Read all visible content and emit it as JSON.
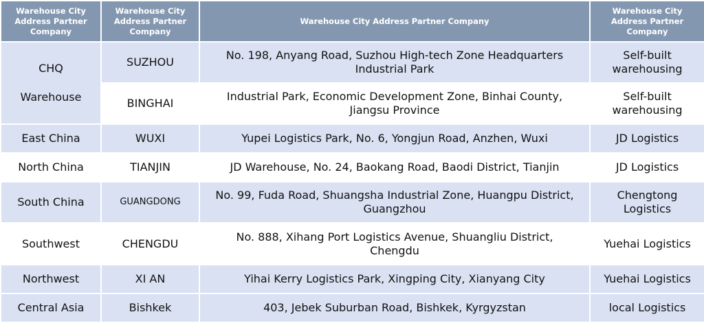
{
  "headers": [
    "Warehouse City Address Partner Company",
    "Warehouse City Address Partner Company",
    "Warehouse City Address Partner Company",
    "Warehouse City Address Partner Company"
  ],
  "merged_region": {
    "line1": "CHQ",
    "line2": "Warehouse"
  },
  "rows": [
    {
      "region": "",
      "city": "SUZHOU",
      "address": "No. 198, Anyang Road, Suzhou High-tech Zone Headquarters Industrial Park",
      "partner": "Self-built warehousing"
    },
    {
      "region": "",
      "city": "BINGHAI",
      "address": "Industrial Park, Economic Development Zone, Binhai County, Jiangsu Province",
      "partner": "Self-built warehousing"
    },
    {
      "region": "East China",
      "city": "WUXI",
      "address": "Yupei Logistics Park, No. 6, Yongjun Road, Anzhen, Wuxi",
      "partner": "JD Logistics"
    },
    {
      "region": "North China",
      "city": "TIANJIN",
      "address": "JD Warehouse, No. 24, Baokang Road, Baodi District, Tianjin",
      "partner": "JD Logistics"
    },
    {
      "region": "South China",
      "city": "GUANGDONG",
      "address": "No. 99, Fuda Road, Shuangsha Industrial Zone, Huangpu District, Guangzhou",
      "partner": "Chengtong Logistics"
    },
    {
      "region": "Southwest",
      "city": "CHENGDU",
      "address": "No. 888, Xihang Port Logistics Avenue, Shuangliu District, Chengdu",
      "partner": "Yuehai Logistics"
    },
    {
      "region": "Northwest",
      "city": "XI AN",
      "address": "Yihai Kerry Logistics Park, Xingping City, Xianyang City",
      "partner": "Yuehai Logistics"
    },
    {
      "region": "Central Asia",
      "city": "Bishkek",
      "address": "403, Jebek Suburban Road, Bishkek, Kyrgyzstan",
      "partner": "local Logistics"
    }
  ],
  "colors": {
    "header": "#8497b0",
    "band": "#d9e1f2",
    "white": "#ffffff"
  }
}
